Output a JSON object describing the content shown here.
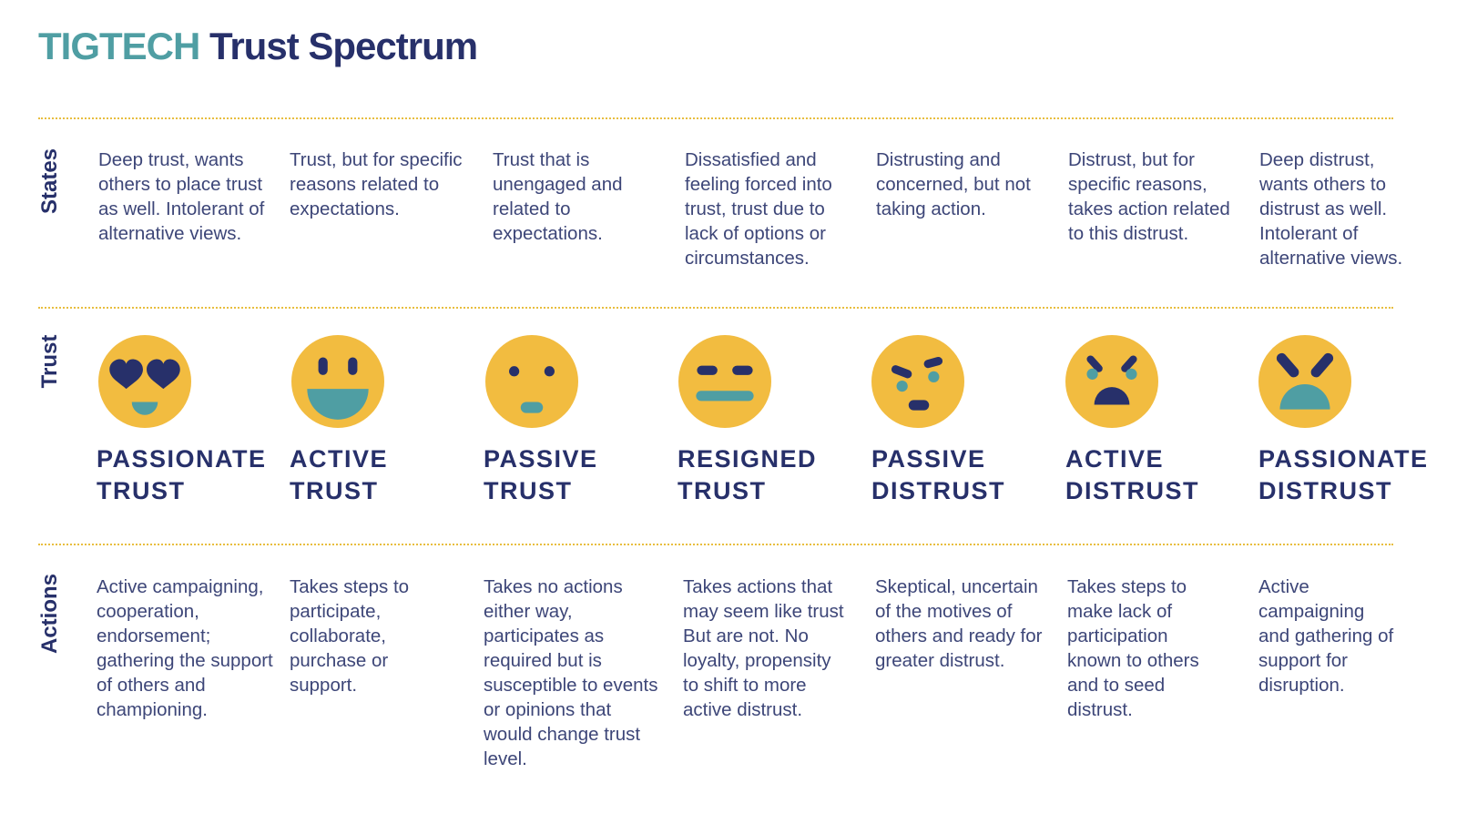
{
  "title": {
    "brand": "TIGTECH",
    "rest": "Trust Spectrum"
  },
  "rows": {
    "states": "States",
    "trust": "Trust",
    "actions": "Actions"
  },
  "colors": {
    "face": "#f2bc40",
    "feature": "#27306a",
    "accent": "#4f9ea3",
    "divider": "#e8be3f"
  },
  "columns": [
    {
      "state": "Deep trust, wants others to place trust as well. Intolerant of alternative views.",
      "icon": "heart-eyes-face-icon",
      "name1": "PASSIONATE",
      "name2": "TRUST",
      "action": "Active campaigning, cooperation, endorsement; gathering the support of others and championing."
    },
    {
      "state": "Trust, but for specific reasons related to expectations.",
      "icon": "big-smile-face-icon",
      "name1": "ACTIVE",
      "name2": "TRUST",
      "action": "Takes steps to participate, collaborate, purchase or support."
    },
    {
      "state": "Trust that is unengaged and related to expectations.",
      "icon": "neutral-face-icon",
      "name1": "PASSIVE",
      "name2": "TRUST",
      "action": "Takes no actions either way, participates as required but is susceptible to events or opinions that would change trust level."
    },
    {
      "state": "Dissatisfied and feeling forced into trust, trust due to lack of options or circumstances.",
      "icon": "flat-mouth-face-icon",
      "name1": "RESIGNED",
      "name2": "TRUST",
      "action": "Takes actions that may seem like trust But are not. No loyalty, propensity to shift to more active distrust."
    },
    {
      "state": "Distrusting and concerned, but not taking action.",
      "icon": "skeptical-face-icon",
      "name1": "PASSIVE",
      "name2": "DISTRUST",
      "action": "Skeptical, uncertain of the motives of others and ready for greater distrust."
    },
    {
      "state": "Distrust, but for specific reasons, takes action related to this distrust.",
      "icon": "upset-face-icon",
      "name1": "ACTIVE",
      "name2": "DISTRUST",
      "action": "Takes steps to make lack of participation known to others and to seed distrust."
    },
    {
      "state": "Deep distrust, wants others to distrust as well. Intolerant of alternative views.",
      "icon": "angry-face-icon",
      "name1": "PASSIONATE",
      "name2": "DISTRUST",
      "action": "Active campaigning and gathering of support for disruption."
    }
  ]
}
